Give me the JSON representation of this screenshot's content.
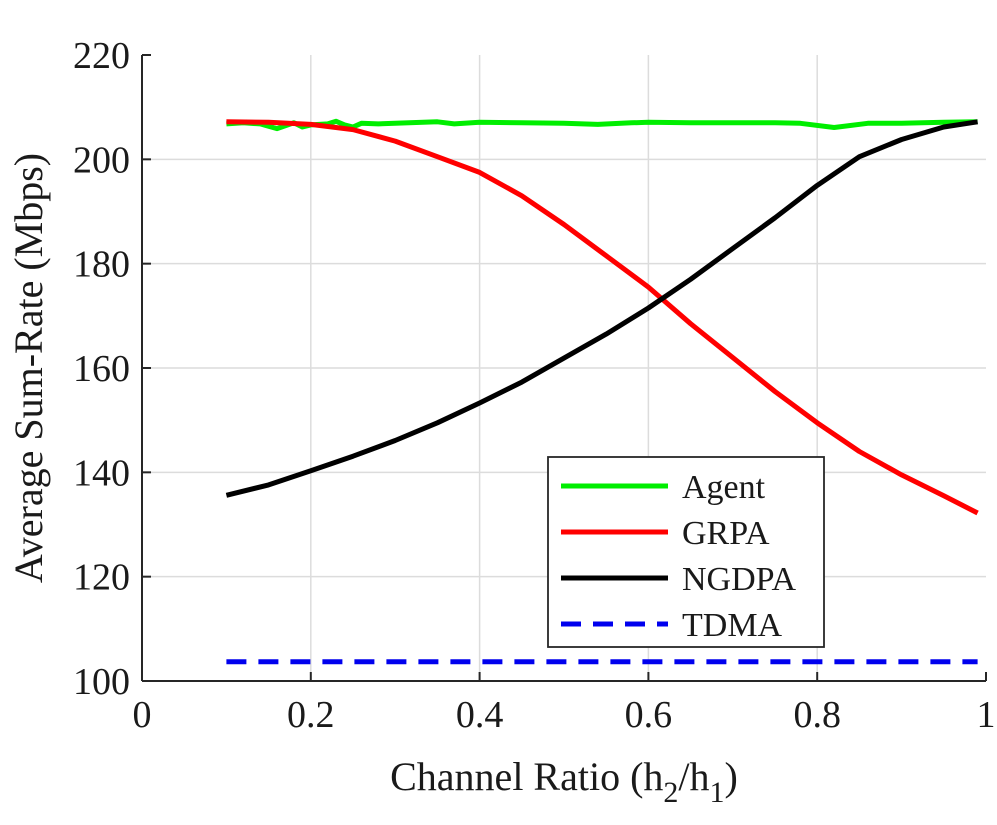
{
  "chart_data": {
    "type": "line",
    "title": "",
    "xlabel": "Channel Ratio (h",
    "xlabel_sub1": "2",
    "xlabel_mid": "/h",
    "xlabel_sub2": "1",
    "xlabel_end": ")",
    "ylabel": "Average Sum-Rate (Mbps)",
    "xlim": [
      0,
      1
    ],
    "ylim": [
      100,
      220
    ],
    "xticks": [
      0,
      0.2,
      0.4,
      0.6,
      0.8,
      1
    ],
    "xtick_labels": [
      "0",
      "0.2",
      "0.4",
      "0.6",
      "0.8",
      "1"
    ],
    "yticks": [
      100,
      120,
      140,
      160,
      180,
      200,
      220
    ],
    "ytick_labels": [
      "100",
      "120",
      "140",
      "160",
      "180",
      "200",
      "220"
    ],
    "grid": true,
    "legend_position": "lower-right",
    "series": [
      {
        "name": "Agent",
        "color": "#00ee00",
        "dash": "solid",
        "x": [
          0.1,
          0.12,
          0.14,
          0.16,
          0.18,
          0.19,
          0.2,
          0.22,
          0.23,
          0.24,
          0.25,
          0.26,
          0.28,
          0.3,
          0.35,
          0.37,
          0.4,
          0.45,
          0.5,
          0.54,
          0.58,
          0.6,
          0.65,
          0.7,
          0.75,
          0.78,
          0.82,
          0.86,
          0.9,
          0.95,
          0.99
        ],
        "y": [
          206.8,
          207.0,
          206.8,
          205.9,
          207.0,
          206.2,
          206.6,
          206.8,
          207.3,
          206.6,
          206.2,
          206.9,
          206.8,
          206.9,
          207.2,
          206.8,
          207.1,
          207.0,
          206.9,
          206.7,
          207.0,
          207.1,
          207.0,
          207.0,
          207.0,
          206.9,
          206.1,
          206.9,
          206.9,
          207.1,
          207.2
        ]
      },
      {
        "name": "GRPA",
        "color": "#ff0000",
        "dash": "solid",
        "x": [
          0.1,
          0.15,
          0.2,
          0.25,
          0.3,
          0.35,
          0.4,
          0.45,
          0.5,
          0.55,
          0.6,
          0.65,
          0.7,
          0.75,
          0.8,
          0.85,
          0.9,
          0.95,
          0.99
        ],
        "y": [
          207.2,
          207.1,
          206.7,
          205.7,
          203.5,
          200.5,
          197.5,
          193.0,
          187.5,
          181.5,
          175.5,
          168.5,
          162.0,
          155.5,
          149.5,
          144.0,
          139.5,
          135.5,
          132.2
        ]
      },
      {
        "name": "NGDPA",
        "color": "#000000",
        "dash": "solid",
        "x": [
          0.1,
          0.15,
          0.2,
          0.25,
          0.3,
          0.35,
          0.4,
          0.45,
          0.5,
          0.55,
          0.6,
          0.65,
          0.7,
          0.75,
          0.8,
          0.85,
          0.9,
          0.95,
          0.99
        ],
        "y": [
          135.6,
          137.6,
          140.3,
          143.1,
          146.1,
          149.5,
          153.3,
          157.3,
          161.9,
          166.5,
          171.5,
          177.0,
          182.9,
          188.8,
          195.0,
          200.5,
          203.8,
          206.2,
          207.2
        ]
      },
      {
        "name": "TDMA",
        "color": "#0000ee",
        "dash": "dashed",
        "x": [
          0.1,
          0.99
        ],
        "y": [
          103.7,
          103.7
        ]
      }
    ]
  }
}
